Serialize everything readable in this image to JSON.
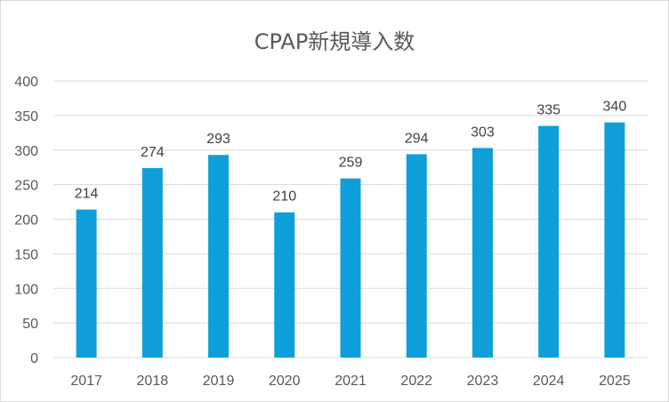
{
  "chart_data": {
    "type": "bar",
    "title": "CPAP新規導入数",
    "categories": [
      "2017",
      "2018",
      "2019",
      "2020",
      "2021",
      "2022",
      "2023",
      "2024",
      "2025"
    ],
    "values": [
      214,
      274,
      293,
      210,
      259,
      294,
      303,
      335,
      340
    ],
    "xlabel": "",
    "ylabel": "",
    "ylim": [
      0,
      400
    ],
    "yticks": [
      "0",
      "50",
      "100",
      "150",
      "200",
      "250",
      "300",
      "350",
      "400"
    ],
    "grid": true,
    "data_labels": true,
    "bar_color": "#0e9fd8",
    "grid_color": "#d9d9d9"
  }
}
